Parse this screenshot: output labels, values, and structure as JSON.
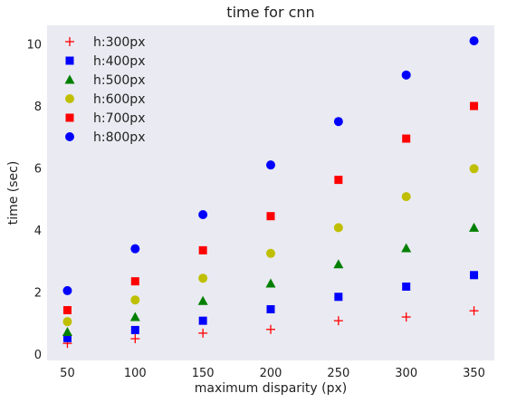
{
  "chart_data": {
    "type": "scatter",
    "title": "time for cnn",
    "xlabel": "maximum disparity (px)",
    "ylabel": "time (sec)",
    "x": [
      50,
      100,
      150,
      200,
      250,
      300,
      350
    ],
    "xlim": [
      35,
      365
    ],
    "ylim": [
      -0.2,
      10.6
    ],
    "xticks": [
      50,
      100,
      150,
      200,
      250,
      300,
      350
    ],
    "yticks": [
      0,
      2,
      4,
      6,
      8,
      10
    ],
    "grid": false,
    "background": "#eaeaf2",
    "legend_position": "top-left",
    "series": [
      {
        "name": "h:300px",
        "marker": "plus",
        "color": "#ff0000",
        "values": [
          0.35,
          0.5,
          0.68,
          0.8,
          1.08,
          1.2,
          1.4
        ]
      },
      {
        "name": "h:400px",
        "marker": "square",
        "color": "#0000ff",
        "values": [
          0.52,
          0.78,
          1.08,
          1.45,
          1.85,
          2.18,
          2.55
        ]
      },
      {
        "name": "h:500px",
        "marker": "triangle",
        "color": "#008000",
        "values": [
          0.72,
          1.2,
          1.72,
          2.28,
          2.9,
          3.42,
          4.08
        ]
      },
      {
        "name": "h:600px",
        "marker": "circle",
        "color": "#bfbf00",
        "values": [
          1.05,
          1.75,
          2.45,
          3.25,
          4.08,
          5.08,
          5.98
        ]
      },
      {
        "name": "h:700px",
        "marker": "square",
        "color": "#ff0000",
        "values": [
          1.42,
          2.35,
          3.35,
          4.45,
          5.62,
          6.95,
          8.0
        ]
      },
      {
        "name": "h:800px",
        "marker": "circle",
        "color": "#0000ff",
        "values": [
          2.05,
          3.4,
          4.5,
          6.1,
          7.5,
          9.0,
          10.1
        ]
      }
    ]
  }
}
